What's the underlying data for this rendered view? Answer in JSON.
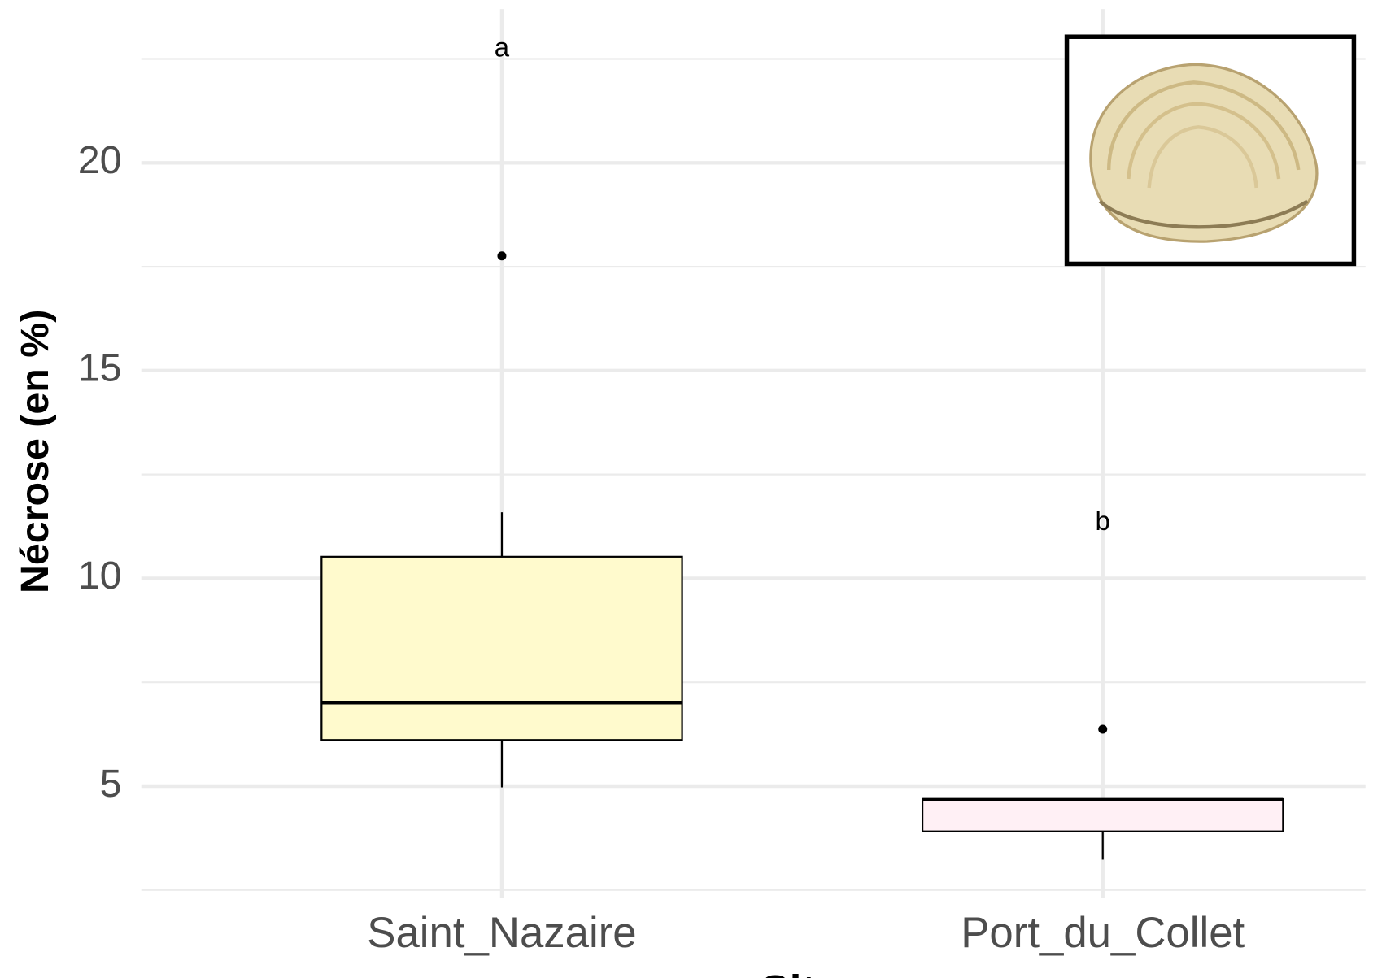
{
  "chart_data": {
    "type": "box",
    "x_label": "Site",
    "y_label": "Nécrose (en %)",
    "categories": [
      "Saint_Nazaire",
      "Port_du_Collet"
    ],
    "boxes": [
      {
        "whisker_low": 4.97,
        "q1": 6.11,
        "median": 7.01,
        "q3": 10.52,
        "whisker_high": 11.59,
        "outliers": [
          17.76
        ],
        "color": "#fffacd"
      },
      {
        "whisker_low": 3.23,
        "q1": 3.91,
        "median": 4.69,
        "q3": 4.69,
        "whisker_high": 4.69,
        "outliers": [
          6.37
        ],
        "color": "#fff0f5"
      }
    ],
    "annotations": [
      {
        "text": "a",
        "y": 22.73
      },
      {
        "text": "b",
        "y": 11.33
      }
    ],
    "ylim": [
      2.3,
      23.7
    ],
    "yticks": [
      5,
      10,
      15,
      20
    ],
    "minor_yticks": [
      2.5,
      7.5,
      12.5,
      17.5,
      22.5
    ],
    "grid": true
  }
}
